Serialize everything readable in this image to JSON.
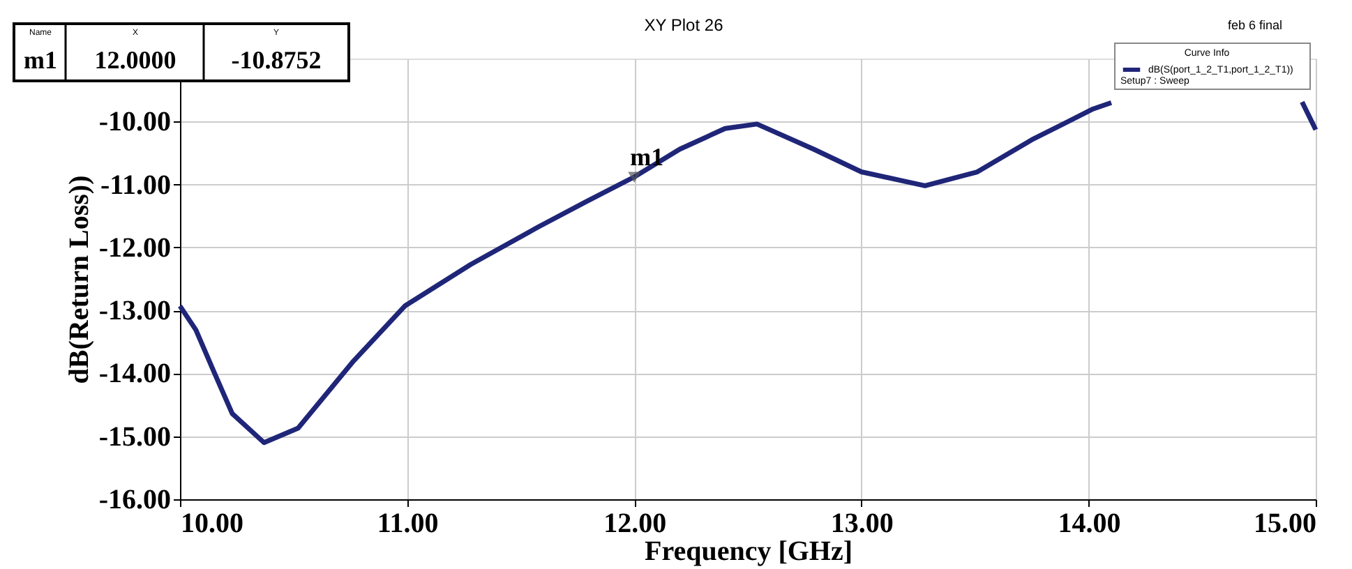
{
  "chart_data": {
    "type": "line",
    "title": "XY Plot 26",
    "xlabel": "Frequency [GHz]",
    "ylabel": "dB(Return Loss))",
    "legend_title": "Curve Info",
    "x": [
      10.0,
      10.07,
      10.15,
      10.23,
      10.37,
      10.52,
      10.76,
      10.99,
      11.28,
      11.58,
      11.79,
      12.0,
      12.2,
      12.4,
      12.54,
      12.79,
      13.0,
      13.28,
      13.51,
      13.75,
      14.02,
      14.1,
      14.5,
      14.94,
      15.0
    ],
    "series": [
      {
        "name": "dB(S(port_1_2_T1,port_1_2_T1))",
        "color": "#1f2678",
        "values": [
          -12.93,
          -13.31,
          -13.98,
          -14.64,
          -15.1,
          -14.87,
          -13.82,
          -12.93,
          -12.27,
          -11.67,
          -11.27,
          -10.88,
          -10.44,
          -10.11,
          -10.04,
          -10.44,
          -10.8,
          -11.02,
          -10.8,
          -10.29,
          -9.8,
          -9.7,
          null,
          -9.69,
          -10.13
        ]
      }
    ],
    "xlim": [
      10,
      15
    ],
    "ylim": [
      -16,
      -9
    ],
    "xticks": [
      {
        "value": 10,
        "label": "10.00"
      },
      {
        "value": 11,
        "label": "11.00"
      },
      {
        "value": 12,
        "label": "12.00"
      },
      {
        "value": 13,
        "label": "13.00"
      },
      {
        "value": 14,
        "label": "14.00"
      },
      {
        "value": 15,
        "label": "15.00"
      }
    ],
    "yticks": [
      {
        "value": -16,
        "label": "-16.00"
      },
      {
        "value": -15,
        "label": "-15.00"
      },
      {
        "value": -14,
        "label": "-14.00"
      },
      {
        "value": -13,
        "label": "-13.00"
      },
      {
        "value": -12,
        "label": "-12.00"
      },
      {
        "value": -11,
        "label": "-11.00"
      },
      {
        "value": -10,
        "label": "-10.00"
      }
    ],
    "grid": true,
    "legend": "top right",
    "line_style": "solid",
    "marker": "none",
    "annotations": [
      "feb 6 final",
      "Name",
      "X",
      "Y",
      "m1",
      "12.0000",
      "-10.8752",
      "Setup7 : Sweep",
      {
        "text": "m1",
        "x": 12.0,
        "y": -10.8752
      }
    ]
  }
}
